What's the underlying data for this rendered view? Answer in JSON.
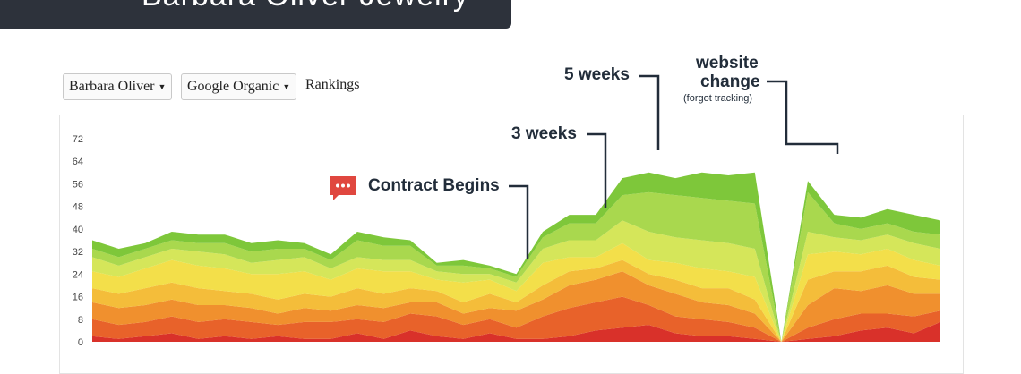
{
  "banner": {
    "title": "Barbara Oliver Jewelry"
  },
  "controls": {
    "client_select": "Barbara Oliver",
    "source_select": "Google Organic",
    "label": "Rankings"
  },
  "annotations": {
    "contract": "Contract Begins",
    "three_weeks": "3 weeks",
    "five_weeks": "5 weeks",
    "website_change_line1": "website",
    "website_change_line2": "change",
    "website_change_note": "(forgot tracking)"
  },
  "colors": {
    "banner": "#2d323b",
    "annotation_text": "#222d3a",
    "annotation_icon": "#e0473f",
    "series": [
      "#d9312a",
      "#e8622a",
      "#f0902e",
      "#f4bd3a",
      "#f3df4a",
      "#d5e65a",
      "#a9d84e",
      "#7ec73a"
    ]
  },
  "chart_data": {
    "type": "area",
    "stacked": true,
    "ylim": [
      0,
      72
    ],
    "yticks": [
      0,
      8,
      16,
      24,
      32,
      40,
      48,
      56,
      64,
      72
    ],
    "grid": false,
    "legend": "none",
    "x": [
      "",
      "",
      "",
      "",
      "",
      "",
      "",
      "",
      "",
      "",
      "",
      "",
      "",
      "",
      "",
      "",
      "",
      "",
      "",
      "",
      "",
      "",
      "",
      "",
      "",
      "",
      "",
      "",
      "",
      "",
      "",
      "",
      ""
    ],
    "series": [
      {
        "values": [
          2,
          1,
          2,
          3,
          1,
          2,
          1,
          2,
          1,
          1,
          3,
          1,
          4,
          2,
          1,
          3,
          1,
          1,
          2,
          4,
          5,
          6,
          3,
          2,
          2,
          1,
          0,
          1,
          2,
          4,
          5,
          3,
          7
        ]
      },
      {
        "values": [
          6,
          5,
          5,
          6,
          6,
          6,
          6,
          4,
          6,
          6,
          5,
          6,
          6,
          7,
          5,
          5,
          4,
          8,
          10,
          10,
          11,
          7,
          6,
          6,
          5,
          4,
          0,
          4,
          6,
          6,
          5,
          6,
          4
        ]
      },
      {
        "values": [
          6,
          6,
          6,
          6,
          6,
          5,
          5,
          4,
          5,
          4,
          5,
          5,
          4,
          5,
          4,
          4,
          6,
          6,
          8,
          8,
          9,
          7,
          8,
          6,
          6,
          5,
          0,
          8,
          11,
          8,
          10,
          8,
          6
        ]
      },
      {
        "values": [
          5,
          5,
          6,
          6,
          6,
          5,
          5,
          5,
          5,
          5,
          6,
          5,
          5,
          4,
          4,
          5,
          3,
          5,
          5,
          4,
          4,
          4,
          5,
          5,
          6,
          5,
          0,
          9,
          6,
          7,
          7,
          6,
          5
        ]
      },
      {
        "values": [
          6,
          6,
          7,
          8,
          8,
          8,
          7,
          9,
          8,
          6,
          7,
          8,
          6,
          4,
          7,
          5,
          4,
          8,
          5,
          4,
          6,
          5,
          6,
          7,
          6,
          8,
          0,
          9,
          7,
          6,
          6,
          6,
          5
        ]
      },
      {
        "values": [
          5,
          4,
          4,
          4,
          5,
          5,
          4,
          5,
          5,
          4,
          4,
          4,
          4,
          3,
          3,
          2,
          3,
          5,
          6,
          6,
          8,
          10,
          9,
          10,
          10,
          10,
          0,
          8,
          5,
          5,
          5,
          6,
          6
        ]
      },
      {
        "values": [
          3,
          3,
          3,
          3,
          3,
          4,
          4,
          4,
          3,
          3,
          6,
          5,
          5,
          2,
          3,
          2,
          2,
          4,
          6,
          6,
          9,
          14,
          15,
          15,
          15,
          16,
          0,
          14,
          5,
          4,
          4,
          4,
          5
        ]
      },
      {
        "values": [
          3,
          3,
          2,
          3,
          3,
          3,
          3,
          3,
          2,
          2,
          3,
          3,
          2,
          1,
          2,
          1,
          1,
          2,
          3,
          3,
          6,
          7,
          6,
          9,
          9,
          11,
          0,
          4,
          3,
          4,
          5,
          6,
          5
        ]
      }
    ]
  }
}
